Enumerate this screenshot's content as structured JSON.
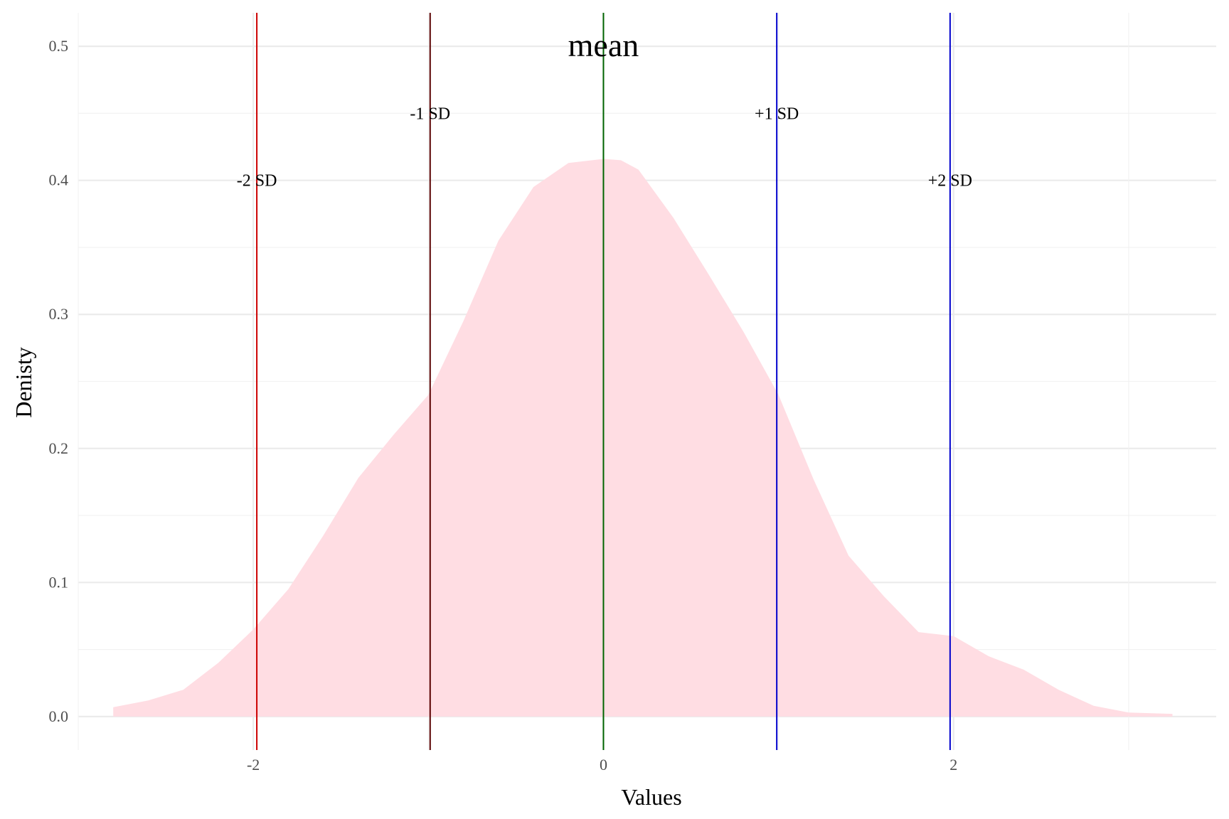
{
  "chart_data": {
    "type": "area",
    "title": "",
    "xlabel": "Values",
    "ylabel": "Denisty",
    "xlim": [
      -3.0,
      3.5
    ],
    "ylim": [
      -0.025,
      0.525
    ],
    "x_ticks": [
      -2,
      0,
      2
    ],
    "x_tick_labels": [
      "-2",
      "0",
      "2"
    ],
    "y_ticks": [
      0.0,
      0.1,
      0.2,
      0.3,
      0.4,
      0.5
    ],
    "y_tick_labels": [
      "0.0",
      "0.1",
      "0.2",
      "0.3",
      "0.4",
      "0.5"
    ],
    "grid": true,
    "series": [
      {
        "color": "#ffdde3",
        "x": [
          -2.8,
          -2.6,
          -2.4,
          -2.2,
          -2.0,
          -1.8,
          -1.6,
          -1.4,
          -1.2,
          -1.0,
          -0.8,
          -0.6,
          -0.4,
          -0.2,
          0.0,
          0.1,
          0.2,
          0.4,
          0.6,
          0.8,
          1.0,
          1.2,
          1.4,
          1.6,
          1.8,
          2.0,
          2.2,
          2.4,
          2.6,
          2.8,
          3.0,
          3.25
        ],
        "y": [
          0.007,
          0.012,
          0.02,
          0.04,
          0.065,
          0.095,
          0.135,
          0.178,
          0.21,
          0.24,
          0.295,
          0.355,
          0.395,
          0.413,
          0.416,
          0.415,
          0.408,
          0.372,
          0.33,
          0.287,
          0.24,
          0.177,
          0.12,
          0.09,
          0.063,
          0.06,
          0.045,
          0.035,
          0.02,
          0.008,
          0.003,
          0.002
        ]
      }
    ],
    "reference_lines": [
      {
        "x": -1.98,
        "label": "-2 SD",
        "label_y": 0.4,
        "color": "#cc0000",
        "size": "normal"
      },
      {
        "x": -0.99,
        "label": "-1 SD",
        "label_y": 0.45,
        "color": "#5a0000",
        "size": "normal"
      },
      {
        "x": 0.0,
        "label": "mean",
        "label_y": 0.5,
        "color": "#006400",
        "size": "large"
      },
      {
        "x": 0.99,
        "label": "+1 SD",
        "label_y": 0.45,
        "color": "#0000cc",
        "size": "normal"
      },
      {
        "x": 1.98,
        "label": "+2 SD",
        "label_y": 0.4,
        "color": "#0000cc",
        "size": "normal"
      }
    ]
  }
}
